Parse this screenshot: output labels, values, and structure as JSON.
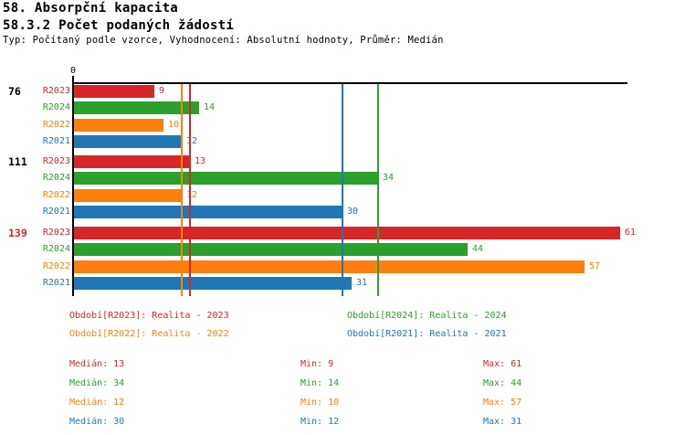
{
  "header": {
    "title_line1": "58. Absorpční kapacita",
    "title_line2": "58.3.2 Počet podaných žádostí",
    "subtitle": "Typ: Počítaný podle vzorce, Vyhodnocení: Absolutní hodnoty, Průměr: Medián"
  },
  "colors": {
    "R2023": "#d62728",
    "R2024": "#2ca02c",
    "R2022": "#ff7f0e",
    "R2021": "#1f77b4",
    "axis": "#000000",
    "group_label_default": "#000000",
    "group_label_highlight": "#d62728",
    "background": "#ffffff"
  },
  "chart_data": {
    "type": "bar",
    "orientation": "horizontal",
    "title": "58.3.2 Počet podaných žádostí",
    "xlabel": "",
    "ylabel": "",
    "x_axis": {
      "origin_label": "0",
      "min": 0,
      "max_visible": 62,
      "grid": false
    },
    "legend_position": "bottom",
    "series_order": [
      "R2023",
      "R2024",
      "R2022",
      "R2021"
    ],
    "groups": [
      {
        "label": "76",
        "highlighted": false,
        "values": [
          9,
          14,
          10,
          12
        ]
      },
      {
        "label": "111",
        "highlighted": false,
        "values": [
          13,
          34,
          12,
          30
        ]
      },
      {
        "label": "139",
        "highlighted": true,
        "values": [
          61,
          44,
          57,
          31
        ]
      }
    ],
    "median_lines": [
      {
        "series": "R2023",
        "value": 13
      },
      {
        "series": "R2024",
        "value": 34
      },
      {
        "series": "R2022",
        "value": 12
      },
      {
        "series": "R2021",
        "value": 30
      }
    ]
  },
  "legend": {
    "items": [
      {
        "series": "R2023",
        "label": "Období[R2023]: Realita - 2023",
        "row": 0,
        "col": 0
      },
      {
        "series": "R2024",
        "label": "Období[R2024]: Realita - 2024",
        "row": 0,
        "col": 1
      },
      {
        "series": "R2022",
        "label": "Období[R2022]: Realita - 2022",
        "row": 1,
        "col": 0
      },
      {
        "series": "R2021",
        "label": "Období[R2021]: Realita - 2021",
        "row": 1,
        "col": 1
      }
    ]
  },
  "stats": {
    "labels": {
      "median": "Medián",
      "min": "Min",
      "max": "Max"
    },
    "rows": [
      {
        "series": "R2023",
        "median": 13,
        "min": 9,
        "max": 61
      },
      {
        "series": "R2024",
        "median": 34,
        "min": 14,
        "max": 44
      },
      {
        "series": "R2022",
        "median": 12,
        "min": 10,
        "max": 57
      },
      {
        "series": "R2021",
        "median": 30,
        "min": 12,
        "max": 31
      }
    ]
  }
}
